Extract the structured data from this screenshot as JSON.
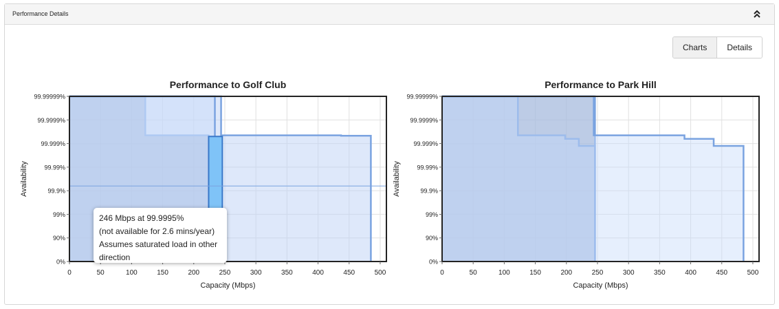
{
  "panel": {
    "title": "Performance Details",
    "collapse_icon": "chevron-double-up-icon"
  },
  "view_toggle": {
    "charts_label": "Charts",
    "details_label": "Details",
    "selected": "Charts"
  },
  "chart_data": [
    {
      "type": "area",
      "title": "Performance to Golf Club",
      "xlabel": "Capacity (Mbps)",
      "ylabel": "Availability",
      "x_ticks": [
        0,
        50,
        100,
        150,
        200,
        250,
        300,
        350,
        400,
        450,
        500
      ],
      "y_levels": [
        "0%",
        "90%",
        "99%",
        "99.9%",
        "99.99%",
        "99.999%",
        "99.9999%",
        "99.99999%"
      ],
      "xlim": [
        0,
        510
      ],
      "grid": true,
      "series": [
        {
          "points": [
            [
              0,
              7
            ],
            [
              122,
              7
            ],
            [
              122,
              5.35
            ],
            [
              224,
              5.35
            ],
            [
              224,
              0
            ]
          ]
        },
        {
          "points": [
            [
              0,
              7
            ],
            [
              244,
              7
            ],
            [
              244,
              5.35
            ],
            [
              437,
              5.35
            ],
            [
              437,
              5.33
            ],
            [
              485,
              5.33
            ],
            [
              485,
              0
            ]
          ]
        },
        {
          "points": [
            [
              0,
              7
            ],
            [
              234,
              7
            ],
            [
              234,
              0
            ]
          ]
        }
      ],
      "highlight": {
        "x_range": [
          224,
          246
        ],
        "level": 5.3
      },
      "crosshair_level": 3.2,
      "tooltip": {
        "lines": [
          "246 Mbps at 99.9995%",
          "(not available for 2.6 mins/year)",
          "Assumes saturated load in other",
          "direction"
        ]
      }
    },
    {
      "type": "area",
      "title": "Performance to Park Hill",
      "xlabel": "Capacity (Mbps)",
      "ylabel": "Availability",
      "x_ticks": [
        0,
        50,
        100,
        150,
        200,
        250,
        300,
        350,
        400,
        450,
        500
      ],
      "y_levels": [
        "0%",
        "90%",
        "99%",
        "99.9%",
        "99.99%",
        "99.999%",
        "99.9999%",
        "99.99999%"
      ],
      "xlim": [
        0,
        510
      ],
      "grid": true,
      "series": [
        {
          "points": [
            [
              0,
              7
            ],
            [
              246,
              7
            ],
            [
              246,
              0
            ]
          ]
        },
        {
          "points": [
            [
              0,
              7
            ],
            [
              122,
              7
            ],
            [
              122,
              5.35
            ],
            [
              198,
              5.35
            ],
            [
              198,
              5.2
            ],
            [
              220,
              5.2
            ],
            [
              220,
              4.9
            ],
            [
              246,
              4.9
            ],
            [
              246,
              0
            ]
          ]
        },
        {
          "points": [
            [
              0,
              7
            ],
            [
              244,
              7
            ],
            [
              244,
              5.35
            ],
            [
              390,
              5.35
            ],
            [
              390,
              5.2
            ],
            [
              437,
              5.2
            ],
            [
              437,
              4.9
            ],
            [
              485,
              4.9
            ],
            [
              485,
              0
            ]
          ]
        }
      ]
    }
  ]
}
